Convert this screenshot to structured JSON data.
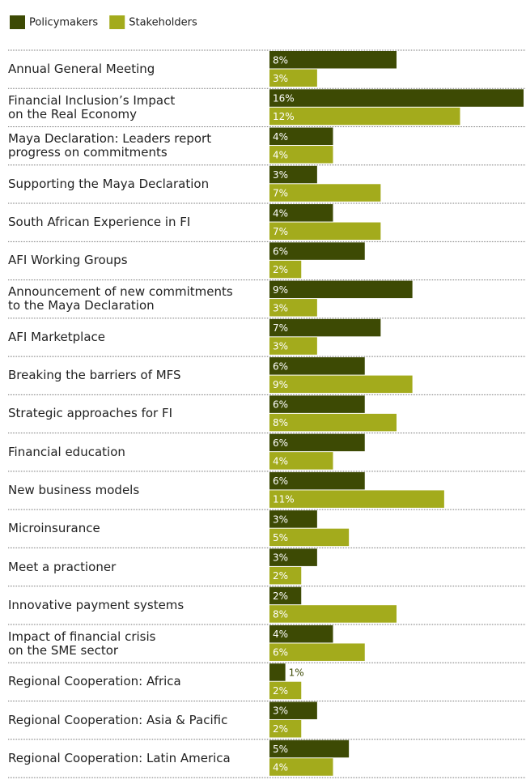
{
  "chart_data": {
    "type": "bar",
    "orientation": "horizontal",
    "categories": [
      "Annual General Meeting",
      "Financial Inclusion’s Impact\non the Real Economy",
      "Maya Declaration: Leaders report\nprogress on commitments",
      "Supporting the Maya Declaration",
      "South African Experience in FI",
      "AFI Working Groups",
      "Announcement of new commitments\nto the Maya Declaration",
      "AFI Marketplace",
      "Breaking the barriers of MFS",
      "Strategic approaches for FI",
      "Financial education",
      "New business models",
      "Microinsurance",
      "Meet a practioner",
      "Innovative payment systems",
      "Impact of financial crisis\non the SME sector",
      "Regional Cooperation: Africa",
      "Regional Cooperation: Asia & Pacific",
      "Regional Cooperation: Latin America"
    ],
    "series": [
      {
        "name": "Policymakers",
        "color": "#3d4a04",
        "values": [
          8,
          16,
          4,
          3,
          4,
          6,
          9,
          7,
          6,
          6,
          6,
          6,
          3,
          3,
          2,
          4,
          1,
          3,
          5
        ],
        "value_labels": [
          "8%",
          "16%",
          "4%",
          "3%",
          "4%",
          "6%",
          "9%",
          "7%",
          "6%",
          "6%",
          "6%",
          "6%",
          "3%",
          "3%",
          "2%",
          "4%",
          "1%",
          "3%",
          "5%"
        ]
      },
      {
        "name": "Stakeholders",
        "color": "#a3ab1c",
        "values": [
          3,
          12,
          4,
          7,
          7,
          2,
          3,
          3,
          9,
          8,
          4,
          11,
          5,
          2,
          8,
          6,
          2,
          2,
          4
        ],
        "value_labels": [
          "3%",
          "12%",
          "4%",
          "7%",
          "7%",
          "2%",
          "3%",
          "3%",
          "9%",
          "8%",
          "4%",
          "11%",
          "5%",
          "2%",
          "8%",
          "6%",
          "2%",
          "2%",
          "4%"
        ]
      }
    ],
    "xlim": [
      0,
      16
    ],
    "legend": "top-left"
  }
}
